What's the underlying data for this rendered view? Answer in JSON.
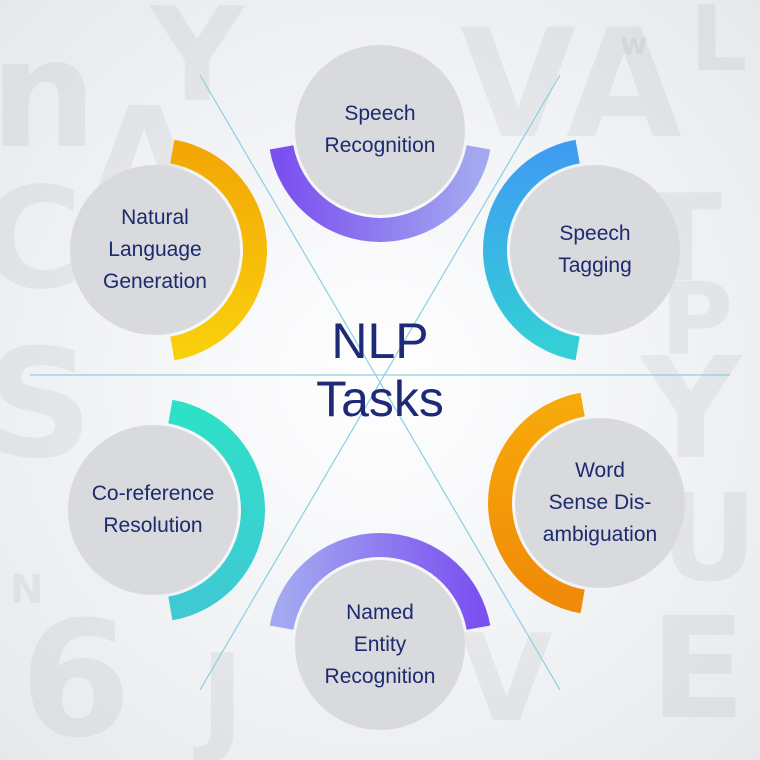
{
  "title": "NLP Tasks",
  "title_lines": [
    "NLP",
    "Tasks"
  ],
  "nodes": [
    {
      "id": "speech-recognition",
      "lines": [
        "Speech",
        "Recognition"
      ],
      "color_start": "#7b50f0",
      "color_end": "#a3a9f0"
    },
    {
      "id": "speech-tagging",
      "lines": [
        "Speech",
        "Tagging"
      ],
      "color_start": "#3f9cf2",
      "color_end": "#33d0d6"
    },
    {
      "id": "word-sense-disambiguation",
      "lines": [
        "Word",
        "Sense Dis-",
        "ambiguation"
      ],
      "color_start": "#f7a90a",
      "color_end": "#f08a08"
    },
    {
      "id": "named-entity-recognition",
      "lines": [
        "Named",
        "Entity",
        "Recognition"
      ],
      "color_start": "#7b50f0",
      "color_end": "#a3a9f0"
    },
    {
      "id": "co-reference-resolution",
      "lines": [
        "Co-reference",
        "Resolution"
      ],
      "color_start": "#3fc9d4",
      "color_end": "#2fe0c8"
    },
    {
      "id": "natural-language-generation",
      "lines": [
        "Natural",
        "Language",
        "Generation"
      ],
      "color_start": "#f9cf0c",
      "color_end": "#f3a705"
    }
  ],
  "background_glyphs": [
    "n",
    "Y",
    "A",
    "VA",
    "w",
    "L",
    "C",
    "T",
    "P",
    "S",
    "Y",
    "U",
    "N",
    "6",
    "J",
    "V",
    "E"
  ]
}
